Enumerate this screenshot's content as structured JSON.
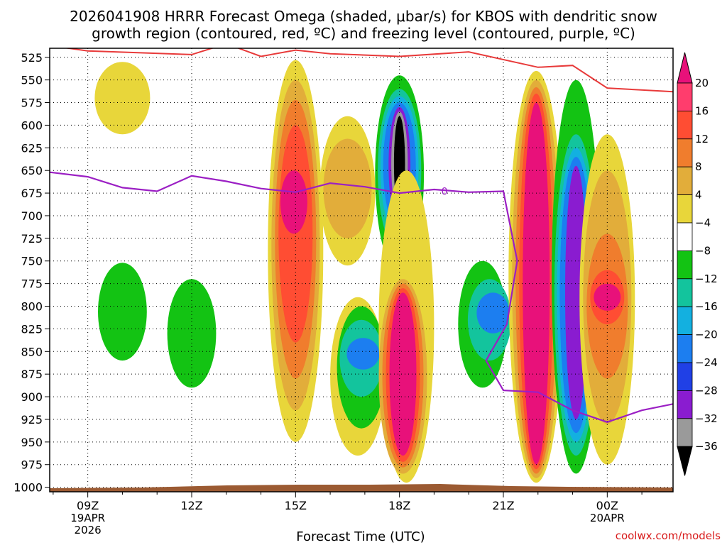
{
  "chart_data": {
    "type": "heatmap",
    "title_line1": "2026041908 HRRR Forecast Omega (shaded, μbar/s) for KBOS with dendritic snow",
    "title_line2": "growth region (contoured, red, ºC) and freezing level (contoured, purple, ºC)",
    "xlabel": "Forecast Time (UTC)",
    "credit": "coolwx.com/models",
    "x_range_hours": [
      7.9,
      25.9
    ],
    "y_range_mb": [
      1005,
      515
    ],
    "y_ticks": [
      525,
      550,
      575,
      600,
      625,
      650,
      675,
      700,
      725,
      750,
      775,
      800,
      825,
      850,
      875,
      900,
      925,
      950,
      975,
      1000
    ],
    "x_ticks": [
      {
        "hour": 9,
        "label": "09Z",
        "date": "19APR",
        "year": "2026"
      },
      {
        "hour": 12,
        "label": "12Z"
      },
      {
        "hour": 15,
        "label": "15Z"
      },
      {
        "hour": 18,
        "label": "18Z"
      },
      {
        "hour": 21,
        "label": "21Z"
      },
      {
        "hour": 24,
        "label": "00Z",
        "date": "20APR"
      }
    ],
    "colorbar": {
      "labels": [
        "20",
        "16",
        "12",
        "8",
        "4",
        "−4",
        "−8",
        "−12",
        "−16",
        "−20",
        "−24",
        "−28",
        "−32",
        "−36"
      ],
      "colors": [
        "#ff3d6d",
        "#ff4d33",
        "#f07d2d",
        "#e2ad3a",
        "#e8d63a",
        "#ffffff",
        "#13c313",
        "#13c49d",
        "#13b0e0",
        "#1c7ef0",
        "#2040e6",
        "#8a1cd0",
        "#9a9a9a",
        "#000000"
      ],
      "top_triangle_color": "#e8117a",
      "bottom_triangle_color": "#000000"
    },
    "bands": [
      {
        "name": "green-blob-1",
        "t": 10.0,
        "p0": 752,
        "p1": 860,
        "level": -8
      },
      {
        "name": "green-blob-2",
        "t": 12.0,
        "p0": 770,
        "p1": 890,
        "level": -8
      },
      {
        "name": "yellow-spike",
        "t": 10.0,
        "p0": 530,
        "p1": 610,
        "level": 4
      },
      {
        "name": "column-15z-yellow",
        "t": 15.0,
        "p0": 528,
        "p1": 950,
        "level": 4
      },
      {
        "name": "column-15z-gold",
        "t": 15.0,
        "p0": 550,
        "p1": 915,
        "level": 8
      },
      {
        "name": "column-15z-orange",
        "t": 15.0,
        "p0": 572,
        "p1": 880,
        "level": 12
      },
      {
        "name": "column-15z-red",
        "t": 15.0,
        "p0": 600,
        "p1": 840,
        "level": 16
      },
      {
        "name": "column-15z-pink",
        "t": 14.95,
        "p0": 650,
        "p1": 720,
        "level": 20
      },
      {
        "name": "column-16z-yellow",
        "t": 16.5,
        "p0": 590,
        "p1": 755,
        "level": 4
      },
      {
        "name": "column-16z-gold",
        "t": 16.5,
        "p0": 615,
        "p1": 725,
        "level": 8
      },
      {
        "name": "col-1645-yellow",
        "t": 16.8,
        "p0": 790,
        "p1": 965,
        "level": 4
      },
      {
        "name": "col-1645-green",
        "t": 16.9,
        "p0": 800,
        "p1": 935,
        "level": -8
      },
      {
        "name": "col-1645-teal",
        "t": 16.9,
        "p0": 815,
        "p1": 900,
        "level": -12
      },
      {
        "name": "col-1645-blue",
        "t": 16.95,
        "p0": 835,
        "p1": 870,
        "level": -20
      },
      {
        "name": "upper-18z-green",
        "t": 18.0,
        "p0": 545,
        "p1": 763,
        "level": -8
      },
      {
        "name": "upper-18z-teal",
        "t": 18.0,
        "p0": 560,
        "p1": 740,
        "level": -12
      },
      {
        "name": "upper-18z-lightblue",
        "t": 18.0,
        "p0": 568,
        "p1": 725,
        "level": -16
      },
      {
        "name": "upper-18z-blue",
        "t": 18.0,
        "p0": 575,
        "p1": 715,
        "level": -20
      },
      {
        "name": "upper-18z-purple",
        "t": 18.0,
        "p0": 580,
        "p1": 708,
        "level": -28
      },
      {
        "name": "upper-18z-grey",
        "t": 18.0,
        "p0": 585,
        "p1": 700,
        "level": -32
      },
      {
        "name": "upper-18z-black",
        "t": 18.0,
        "p0": 590,
        "p1": 695,
        "level": -36
      },
      {
        "name": "lower-18z-yellow",
        "t": 18.2,
        "p0": 650,
        "p1": 995,
        "level": 4
      },
      {
        "name": "lower-18z-gold",
        "t": 18.1,
        "p0": 770,
        "p1": 985,
        "level": 8
      },
      {
        "name": "lower-18z-orange",
        "t": 18.1,
        "p0": 775,
        "p1": 978,
        "level": 12
      },
      {
        "name": "lower-18z-red",
        "t": 18.1,
        "p0": 780,
        "p1": 972,
        "level": 16
      },
      {
        "name": "lower-18z-pink",
        "t": 18.1,
        "p0": 785,
        "p1": 965,
        "level": 20
      },
      {
        "name": "col-20z-green",
        "t": 20.4,
        "p0": 750,
        "p1": 890,
        "level": -8
      },
      {
        "name": "col-20z-teal",
        "t": 20.6,
        "p0": 770,
        "p1": 860,
        "level": -12
      },
      {
        "name": "col-20z-blue",
        "t": 20.7,
        "p0": 785,
        "p1": 830,
        "level": -20
      },
      {
        "name": "col-2130-yellow",
        "t": 21.95,
        "p0": 540,
        "p1": 995,
        "level": 4
      },
      {
        "name": "col-2130-gold",
        "t": 21.95,
        "p0": 550,
        "p1": 990,
        "level": 8
      },
      {
        "name": "col-2130-orange",
        "t": 21.95,
        "p0": 558,
        "p1": 985,
        "level": 12
      },
      {
        "name": "col-2130-red",
        "t": 21.95,
        "p0": 565,
        "p1": 980,
        "level": 16
      },
      {
        "name": "col-2130-pink",
        "t": 21.95,
        "p0": 575,
        "p1": 975,
        "level": 20
      },
      {
        "name": "col-23z-green",
        "t": 23.1,
        "p0": 550,
        "p1": 985,
        "level": -8
      },
      {
        "name": "col-23z-teal",
        "t": 23.1,
        "p0": 610,
        "p1": 965,
        "level": -12
      },
      {
        "name": "col-23z-lightblue",
        "t": 23.1,
        "p0": 625,
        "p1": 950,
        "level": -16
      },
      {
        "name": "col-23z-blue",
        "t": 23.1,
        "p0": 635,
        "p1": 940,
        "level": -20
      },
      {
        "name": "col-23z-purple",
        "t": 23.1,
        "p0": 645,
        "p1": 925,
        "level": -28
      },
      {
        "name": "col-00z-yellow",
        "t": 24.0,
        "p0": 610,
        "p1": 975,
        "level": 4
      },
      {
        "name": "col-00z-gold",
        "t": 24.0,
        "p0": 650,
        "p1": 930,
        "level": 8
      },
      {
        "name": "col-00z-orange",
        "t": 24.0,
        "p0": 720,
        "p1": 880,
        "level": 12
      },
      {
        "name": "col-00z-red",
        "t": 24.0,
        "p0": 760,
        "p1": 820,
        "level": 16
      },
      {
        "name": "col-00z-pink",
        "t": 24.0,
        "p0": 775,
        "p1": 805,
        "level": 20
      }
    ],
    "dgz_line": {
      "label": "dendritic snow growth region (red)",
      "points": [
        [
          7.9,
          512
        ],
        [
          9.0,
          518
        ],
        [
          12.0,
          522
        ],
        [
          13.0,
          510
        ],
        [
          14.0,
          524
        ],
        [
          15.0,
          517
        ],
        [
          16.0,
          521
        ],
        [
          18.0,
          524
        ],
        [
          20.0,
          519
        ],
        [
          22.0,
          536
        ],
        [
          23.0,
          534
        ],
        [
          24.0,
          559
        ],
        [
          25.9,
          563
        ]
      ]
    },
    "freezing_line": {
      "label": "freezing level (purple)",
      "contour_label": "0",
      "points": [
        [
          7.9,
          652
        ],
        [
          9.0,
          657
        ],
        [
          10.0,
          669
        ],
        [
          11.0,
          673
        ],
        [
          12.0,
          656
        ],
        [
          13.0,
          662
        ],
        [
          14.0,
          670
        ],
        [
          15.0,
          674
        ],
        [
          16.0,
          664
        ],
        [
          17.0,
          668
        ],
        [
          18.0,
          675
        ],
        [
          19.0,
          671
        ],
        [
          20.0,
          674
        ],
        [
          21.0,
          673
        ],
        [
          21.4,
          750
        ],
        [
          21.1,
          820
        ],
        [
          20.5,
          860
        ],
        [
          21.0,
          893
        ],
        [
          22.0,
          895
        ],
        [
          23.0,
          915
        ],
        [
          24.0,
          928
        ],
        [
          25.0,
          915
        ],
        [
          25.9,
          908
        ]
      ]
    }
  }
}
